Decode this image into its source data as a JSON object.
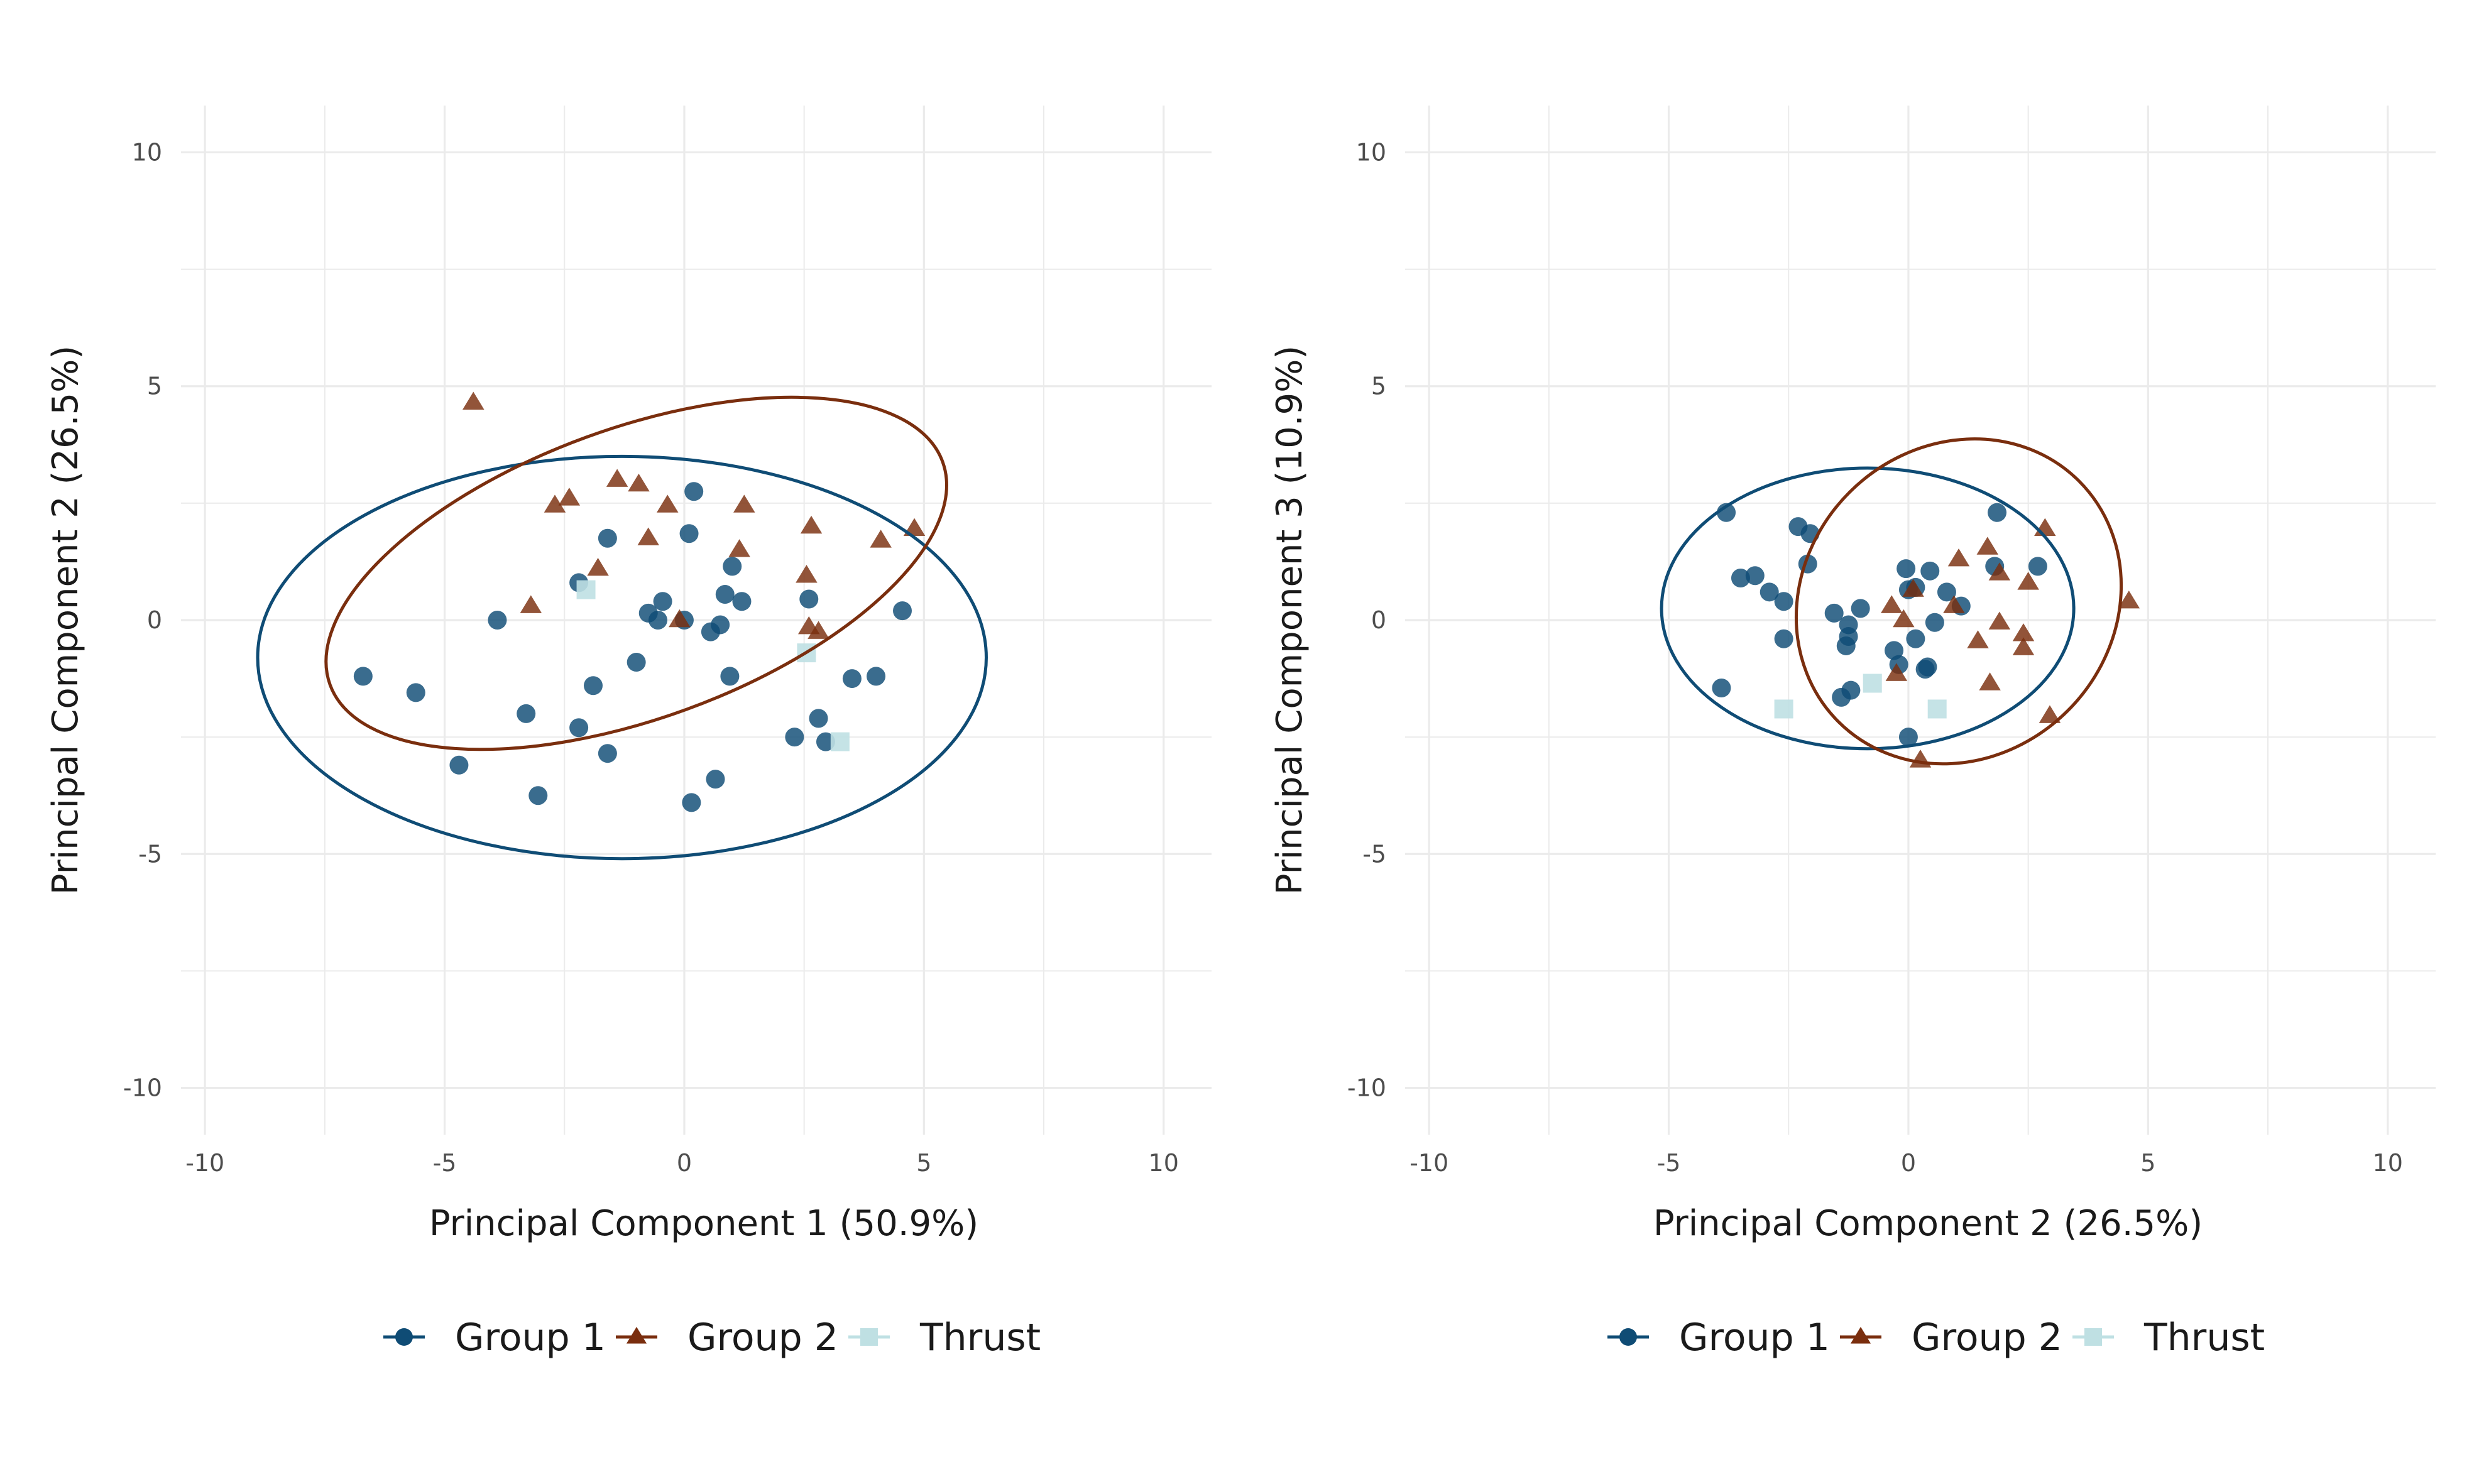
{
  "colors": {
    "group1": "#0f4c75",
    "group2": "#7a2e0e",
    "thrust": "#bfe0e3",
    "grid": "#ebebeb",
    "tick_text": "#4d4d4d",
    "title_text": "#1a1a1a",
    "background": "#ffffff"
  },
  "legend": {
    "placement": "bottom",
    "items": [
      {
        "key": "group1",
        "label": "Group 1",
        "shape": "circle"
      },
      {
        "key": "group2",
        "label": "Group 2",
        "shape": "triangle"
      },
      {
        "key": "thrust",
        "label": "Thrust",
        "shape": "square"
      }
    ]
  },
  "chart_data": [
    {
      "type": "scatter",
      "xlabel": "Principal Component 1 (50.9%)",
      "ylabel": "Principal Component 2 (26.5%)",
      "xlim": [
        -10.5,
        11
      ],
      "ylim": [
        -11,
        11
      ],
      "xticks": [
        -10,
        -5,
        0,
        5,
        10
      ],
      "yticks": [
        -10,
        -5,
        0,
        5,
        10
      ],
      "grid": true,
      "series": [
        {
          "name": "Group 1",
          "key": "group1",
          "marker": "circle",
          "points": [
            [
              -6.7,
              -1.2
            ],
            [
              -5.6,
              -1.55
            ],
            [
              -4.7,
              -3.1
            ],
            [
              -3.9,
              0.0
            ],
            [
              -3.3,
              -2.0
            ],
            [
              -3.05,
              -3.75
            ],
            [
              -2.2,
              0.8
            ],
            [
              -2.2,
              -2.3
            ],
            [
              -1.9,
              -1.4
            ],
            [
              -1.6,
              1.75
            ],
            [
              -1.6,
              -2.85
            ],
            [
              -1.0,
              -0.9
            ],
            [
              -0.75,
              0.15
            ],
            [
              -0.55,
              0.0
            ],
            [
              -0.45,
              0.4
            ],
            [
              0.0,
              0.0
            ],
            [
              0.1,
              1.85
            ],
            [
              0.15,
              -3.9
            ],
            [
              0.2,
              2.75
            ],
            [
              0.55,
              -0.25
            ],
            [
              0.65,
              -3.4
            ],
            [
              0.75,
              -0.1
            ],
            [
              0.85,
              0.55
            ],
            [
              0.95,
              -1.2
            ],
            [
              1.0,
              1.15
            ],
            [
              1.2,
              0.4
            ],
            [
              2.3,
              -2.5
            ],
            [
              2.6,
              0.45
            ],
            [
              2.8,
              -2.1
            ],
            [
              2.95,
              -2.6
            ],
            [
              3.5,
              -1.25
            ],
            [
              4.0,
              -1.2
            ],
            [
              4.55,
              0.2
            ]
          ]
        },
        {
          "name": "Group 2",
          "key": "group2",
          "marker": "triangle",
          "points": [
            [
              -4.4,
              4.65
            ],
            [
              -3.2,
              0.3
            ],
            [
              -2.7,
              2.45
            ],
            [
              -2.4,
              2.6
            ],
            [
              -1.8,
              1.1
            ],
            [
              -1.4,
              3.0
            ],
            [
              -0.95,
              2.9
            ],
            [
              -0.75,
              1.75
            ],
            [
              -0.35,
              2.45
            ],
            [
              -0.1,
              0.0
            ],
            [
              1.15,
              1.5
            ],
            [
              1.25,
              2.45
            ],
            [
              2.55,
              0.95
            ],
            [
              2.6,
              -0.15
            ],
            [
              2.65,
              2.0
            ],
            [
              2.8,
              -0.25
            ],
            [
              4.1,
              1.7
            ],
            [
              4.8,
              1.95
            ]
          ]
        },
        {
          "name": "Thrust",
          "key": "thrust",
          "marker": "square",
          "points": [
            [
              -2.05,
              0.65
            ],
            [
              2.55,
              -0.7
            ],
            [
              3.25,
              -2.6
            ]
          ]
        }
      ],
      "ellipses": [
        {
          "key": "group1",
          "center": [
            -1.3,
            -0.8
          ],
          "a": 7.6,
          "b": 4.3,
          "angle_deg": 0
        },
        {
          "key": "group2",
          "center": [
            -1.0,
            1.0
          ],
          "a": 6.8,
          "b": 3.1,
          "angle_deg": -20
        }
      ]
    },
    {
      "type": "scatter",
      "xlabel": "Principal Component 2 (26.5%)",
      "ylabel": "Principal Component 3 (10.9%)",
      "xlim": [
        -10.5,
        11
      ],
      "ylim": [
        -11,
        11
      ],
      "xticks": [
        -10,
        -5,
        0,
        5,
        10
      ],
      "yticks": [
        -10,
        -5,
        0,
        5,
        10
      ],
      "grid": true,
      "series": [
        {
          "name": "Group 1",
          "key": "group1",
          "marker": "circle",
          "points": [
            [
              -3.8,
              2.3
            ],
            [
              -3.9,
              -1.45
            ],
            [
              -3.5,
              0.9
            ],
            [
              -3.2,
              0.95
            ],
            [
              -2.9,
              0.6
            ],
            [
              -2.6,
              -0.4
            ],
            [
              -2.6,
              0.4
            ],
            [
              -2.3,
              2.0
            ],
            [
              -2.1,
              1.2
            ],
            [
              -2.05,
              1.85
            ],
            [
              -1.55,
              0.15
            ],
            [
              -1.3,
              -0.55
            ],
            [
              -1.25,
              -0.35
            ],
            [
              -1.25,
              -0.1
            ],
            [
              -1.2,
              -1.5
            ],
            [
              -1.4,
              -1.65
            ],
            [
              -1.0,
              0.25
            ],
            [
              -0.3,
              -0.65
            ],
            [
              -0.2,
              -0.95
            ],
            [
              -0.05,
              1.1
            ],
            [
              0.0,
              0.65
            ],
            [
              0.0,
              -2.5
            ],
            [
              0.15,
              0.7
            ],
            [
              0.15,
              -0.4
            ],
            [
              0.35,
              -1.05
            ],
            [
              0.4,
              -1.0
            ],
            [
              0.45,
              1.05
            ],
            [
              0.55,
              -0.05
            ],
            [
              0.8,
              0.6
            ],
            [
              1.1,
              0.3
            ],
            [
              1.8,
              1.15
            ],
            [
              1.85,
              2.3
            ],
            [
              2.7,
              1.15
            ]
          ]
        },
        {
          "name": "Group 2",
          "key": "group2",
          "marker": "triangle",
          "points": [
            [
              -0.35,
              0.3
            ],
            [
              -0.25,
              -1.15
            ],
            [
              -0.1,
              0.0
            ],
            [
              0.1,
              0.65
            ],
            [
              0.25,
              -3.0
            ],
            [
              0.95,
              0.3
            ],
            [
              1.05,
              1.3
            ],
            [
              1.45,
              -0.45
            ],
            [
              1.65,
              1.55
            ],
            [
              1.7,
              -1.35
            ],
            [
              1.9,
              -0.05
            ],
            [
              1.9,
              1.0
            ],
            [
              2.4,
              -0.3
            ],
            [
              2.4,
              -0.6
            ],
            [
              2.5,
              0.8
            ],
            [
              2.85,
              1.95
            ],
            [
              2.95,
              -2.05
            ],
            [
              4.6,
              0.4
            ]
          ]
        },
        {
          "name": "Thrust",
          "key": "thrust",
          "marker": "square",
          "points": [
            [
              -2.6,
              -1.9
            ],
            [
              -0.75,
              -1.35
            ],
            [
              0.6,
              -1.9
            ]
          ]
        }
      ],
      "ellipses": [
        {
          "key": "group1",
          "center": [
            -0.85,
            0.25
          ],
          "a": 4.3,
          "b": 3.0,
          "angle_deg": 0
        },
        {
          "key": "group2",
          "center": [
            1.05,
            0.4
          ],
          "a": 3.55,
          "b": 3.3,
          "angle_deg": -45
        }
      ]
    }
  ]
}
